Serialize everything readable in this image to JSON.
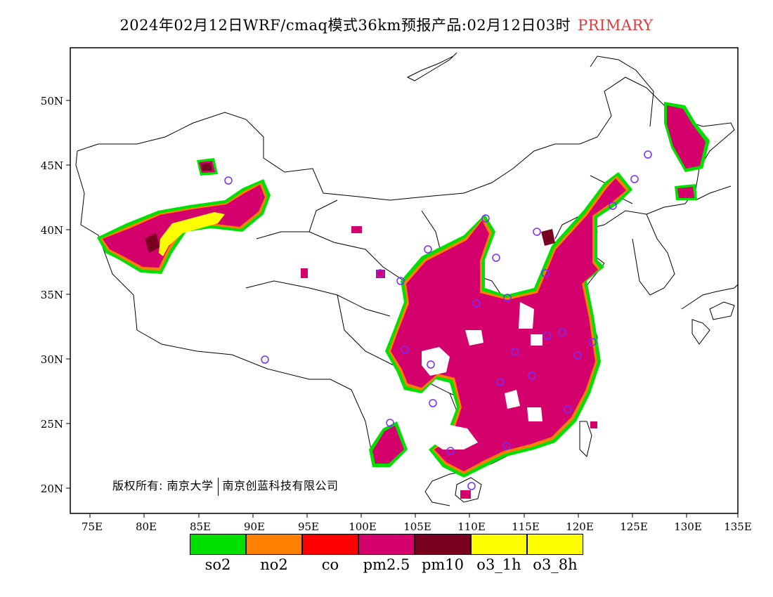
{
  "header": {
    "title": "2024年02月12日WRF/cmaq模式36km预报产品:02月12日03时",
    "tag": "PRIMARY"
  },
  "axes": {
    "lon_labels": [
      "75E",
      "80E",
      "85E",
      "90E",
      "95E",
      "100E",
      "105E",
      "110E",
      "115E",
      "120E",
      "125E",
      "130E",
      "135E"
    ],
    "lat_labels": [
      "50N",
      "45N",
      "40N",
      "35N",
      "30N",
      "25N",
      "20N"
    ]
  },
  "copyright": {
    "prefix": "版权所有:",
    "org1": "南京大学",
    "org2": "南京创蓝科技有限公司"
  },
  "legend": {
    "items": [
      {
        "label": "so2",
        "color": "#00e000"
      },
      {
        "label": "no2",
        "color": "#ff8000"
      },
      {
        "label": "co",
        "color": "#ff0000"
      },
      {
        "label": "pm2.5",
        "color": "#d4006c"
      },
      {
        "label": "pm10",
        "color": "#7a0022"
      },
      {
        "label": "o3_1h",
        "color": "#ffff00"
      },
      {
        "label": "o3_8h",
        "color": "#ffff00"
      }
    ]
  },
  "colors": {
    "pm25": "#d4006c",
    "pm10": "#7a0022",
    "o3": "#ffff00",
    "so2_edge": "#00e000",
    "no2_edge": "#ff8000",
    "station": "#7a2cff"
  }
}
